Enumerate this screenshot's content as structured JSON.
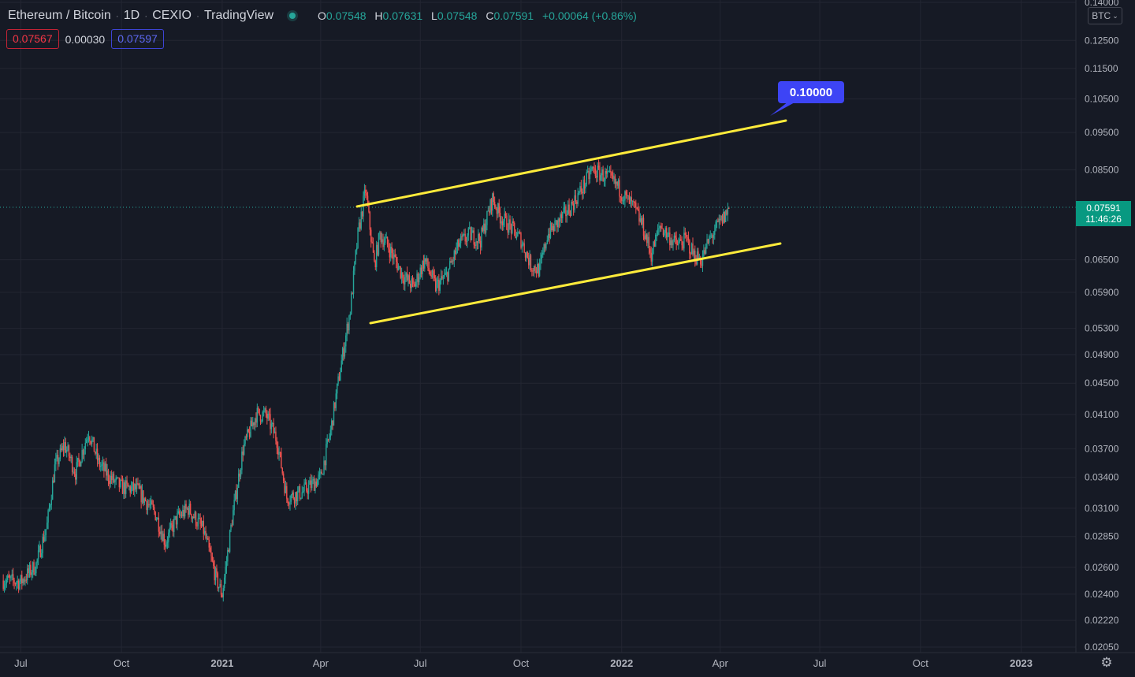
{
  "header": {
    "symbol": "Ethereum / Bitcoin",
    "interval": "1D",
    "exchange": "CEXIO",
    "source": "TradingView",
    "ohlc": {
      "o_label": "O",
      "o": "0.07548",
      "h_label": "H",
      "h": "0.07631",
      "l_label": "L",
      "l": "0.07548",
      "c_label": "C",
      "c": "0.07591",
      "change": "+0.00064 (+0.86%)"
    }
  },
  "quotes": {
    "bid": "0.07567",
    "spread": "0.00030",
    "ask": "0.07597"
  },
  "price_axis": {
    "currency": "BTC",
    "ticks": [
      "0.14000",
      "0.12500",
      "0.11500",
      "0.10500",
      "0.09500",
      "0.08500",
      "0.06500",
      "0.05900",
      "0.05300",
      "0.04900",
      "0.04500",
      "0.04100",
      "0.03700",
      "0.03400",
      "0.03100",
      "0.02850",
      "0.02600",
      "0.02400",
      "0.02220",
      "0.02050"
    ],
    "last_price": "0.07591",
    "countdown": "11:46:26"
  },
  "time_axis": {
    "ticks": [
      "Jul",
      "Oct",
      "2021",
      "Apr",
      "Jul",
      "Oct",
      "2022",
      "Apr",
      "Jul",
      "Oct",
      "2023"
    ]
  },
  "annotation": {
    "label": "0.10000"
  },
  "colors": {
    "background": "#161a25",
    "grid": "#232632",
    "up": "#26a69a",
    "down": "#ef5350",
    "channel": "#ffeb3b",
    "callout": "#3d44f5",
    "last_price": "#089981"
  },
  "chart_data": {
    "type": "candlestick",
    "title": "Ethereum / Bitcoin · 1D · CEXIO",
    "y_scale": "log",
    "ylim": [
      0.0205,
      0.14
    ],
    "x_range": [
      "2020-06-12",
      "2023-02-20"
    ],
    "series_close": [
      [
        "2020-06-15",
        0.025
      ],
      [
        "2020-07-01",
        0.0249
      ],
      [
        "2020-07-15",
        0.0262
      ],
      [
        "2020-07-25",
        0.0295
      ],
      [
        "2020-08-01",
        0.035
      ],
      [
        "2020-08-10",
        0.0375
      ],
      [
        "2020-08-20",
        0.0345
      ],
      [
        "2020-09-01",
        0.039
      ],
      [
        "2020-09-10",
        0.0355
      ],
      [
        "2020-09-20",
        0.034
      ],
      [
        "2020-10-01",
        0.033
      ],
      [
        "2020-10-15",
        0.0328
      ],
      [
        "2020-11-01",
        0.0305
      ],
      [
        "2020-11-10",
        0.028
      ],
      [
        "2020-11-20",
        0.03
      ],
      [
        "2020-12-01",
        0.031
      ],
      [
        "2020-12-15",
        0.029
      ],
      [
        "2020-12-27",
        0.025
      ],
      [
        "2021-01-01",
        0.024
      ],
      [
        "2021-01-10",
        0.03
      ],
      [
        "2021-01-20",
        0.037
      ],
      [
        "2021-02-01",
        0.041
      ],
      [
        "2021-02-10",
        0.041
      ],
      [
        "2021-02-20",
        0.038
      ],
      [
        "2021-03-01",
        0.032
      ],
      [
        "2021-03-15",
        0.0325
      ],
      [
        "2021-04-01",
        0.034
      ],
      [
        "2021-04-10",
        0.039
      ],
      [
        "2021-04-20",
        0.048
      ],
      [
        "2021-04-28",
        0.056
      ],
      [
        "2021-05-05",
        0.07
      ],
      [
        "2021-05-12",
        0.08
      ],
      [
        "2021-05-20",
        0.064
      ],
      [
        "2021-05-25",
        0.07
      ],
      [
        "2021-06-01",
        0.068
      ],
      [
        "2021-06-15",
        0.062
      ],
      [
        "2021-06-25",
        0.06
      ],
      [
        "2021-07-05",
        0.065
      ],
      [
        "2021-07-15",
        0.06
      ],
      [
        "2021-07-25",
        0.062
      ],
      [
        "2021-08-05",
        0.068
      ],
      [
        "2021-08-15",
        0.07
      ],
      [
        "2021-08-25",
        0.069
      ],
      [
        "2021-09-05",
        0.078
      ],
      [
        "2021-09-12",
        0.074
      ],
      [
        "2021-09-20",
        0.072
      ],
      [
        "2021-10-01",
        0.069
      ],
      [
        "2021-10-10",
        0.064
      ],
      [
        "2021-10-18",
        0.063
      ],
      [
        "2021-10-25",
        0.07
      ],
      [
        "2021-11-05",
        0.073
      ],
      [
        "2021-11-15",
        0.076
      ],
      [
        "2021-11-25",
        0.08
      ],
      [
        "2021-12-05",
        0.085
      ],
      [
        "2021-12-12",
        0.084
      ],
      [
        "2021-12-20",
        0.083
      ],
      [
        "2021-12-28",
        0.081
      ],
      [
        "2022-01-05",
        0.078
      ],
      [
        "2022-01-12",
        0.076
      ],
      [
        "2022-01-20",
        0.072
      ],
      [
        "2022-01-28",
        0.066
      ],
      [
        "2022-02-05",
        0.072
      ],
      [
        "2022-02-12",
        0.07
      ],
      [
        "2022-02-20",
        0.068
      ],
      [
        "2022-03-01",
        0.069
      ],
      [
        "2022-03-08",
        0.066
      ],
      [
        "2022-03-15",
        0.065
      ],
      [
        "2022-03-22",
        0.069
      ],
      [
        "2022-03-30",
        0.072
      ],
      [
        "2022-04-05",
        0.074
      ],
      [
        "2022-04-09",
        0.0759
      ]
    ],
    "annotations": [
      {
        "type": "trendline",
        "label": "channel-upper",
        "from": [
          "2021-05-05",
          0.076
        ],
        "to": [
          "2022-05-20",
          0.098
        ]
      },
      {
        "type": "trendline",
        "label": "channel-lower",
        "from": [
          "2021-05-10",
          0.054
        ],
        "to": [
          "2022-05-25",
          0.069
        ]
      },
      {
        "type": "price-callout",
        "text": "0.10000",
        "at": [
          "2022-05-15",
          0.097
        ]
      }
    ]
  }
}
